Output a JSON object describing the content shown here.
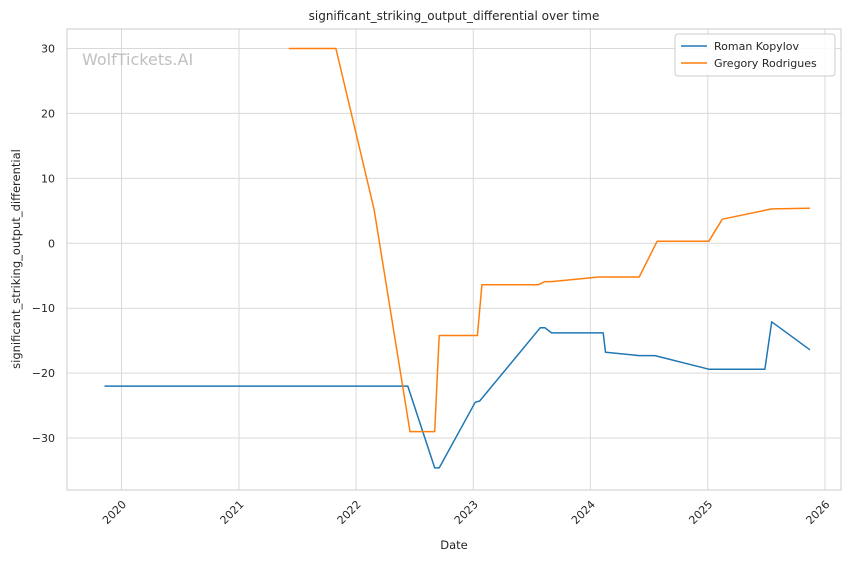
{
  "watermark": "WolfTickets.AI",
  "chart_data": {
    "type": "line",
    "title": "significant_striking_output_differential over time",
    "xlabel": "Date",
    "ylabel": "significant_striking_output_differential",
    "x_ticks": [
      "2020",
      "2021",
      "2022",
      "2023",
      "2024",
      "2025",
      "2026"
    ],
    "y_ticks": [
      -30,
      -20,
      -10,
      0,
      10,
      20,
      30
    ],
    "xlim": [
      "2019-07-15",
      "2026-02-20"
    ],
    "ylim": [
      -38,
      33
    ],
    "grid": true,
    "legend": "top-right",
    "series": [
      {
        "name": "Roman Kopylov",
        "color": "#1f77b4",
        "points": [
          [
            "2019-11-09",
            -22.0
          ],
          [
            "2022-06-11",
            -22.0
          ],
          [
            "2022-09-03",
            -34.6
          ],
          [
            "2022-09-17",
            -34.6
          ],
          [
            "2023-01-07",
            -24.5
          ],
          [
            "2023-01-21",
            -24.3
          ],
          [
            "2023-07-29",
            -13.0
          ],
          [
            "2023-08-12",
            -13.0
          ],
          [
            "2023-09-02",
            -13.8
          ],
          [
            "2024-02-10",
            -13.8
          ],
          [
            "2024-02-17",
            -16.8
          ],
          [
            "2024-06-01",
            -17.3
          ],
          [
            "2024-07-20",
            -17.3
          ],
          [
            "2025-01-04",
            -19.4
          ],
          [
            "2025-06-28",
            -19.4
          ],
          [
            "2025-07-19",
            -12.1
          ],
          [
            "2025-11-15",
            -16.4
          ]
        ]
      },
      {
        "name": "Gregory Rodrigues",
        "color": "#ff7f0e",
        "points": [
          [
            "2021-06-05",
            30.0
          ],
          [
            "2021-10-30",
            30.0
          ],
          [
            "2022-02-26",
            5.2
          ],
          [
            "2022-06-18",
            -29.0
          ],
          [
            "2022-09-03",
            -29.0
          ],
          [
            "2022-09-17",
            -14.2
          ],
          [
            "2023-01-14",
            -14.2
          ],
          [
            "2023-01-28",
            -6.4
          ],
          [
            "2023-07-22",
            -6.4
          ],
          [
            "2023-08-12",
            -5.9
          ],
          [
            "2023-09-02",
            -5.9
          ],
          [
            "2024-01-27",
            -5.2
          ],
          [
            "2024-06-01",
            -5.2
          ],
          [
            "2024-07-27",
            0.3
          ],
          [
            "2025-01-04",
            0.3
          ],
          [
            "2025-02-15",
            3.7
          ],
          [
            "2025-07-19",
            5.3
          ],
          [
            "2025-11-15",
            5.4
          ]
        ]
      }
    ]
  }
}
